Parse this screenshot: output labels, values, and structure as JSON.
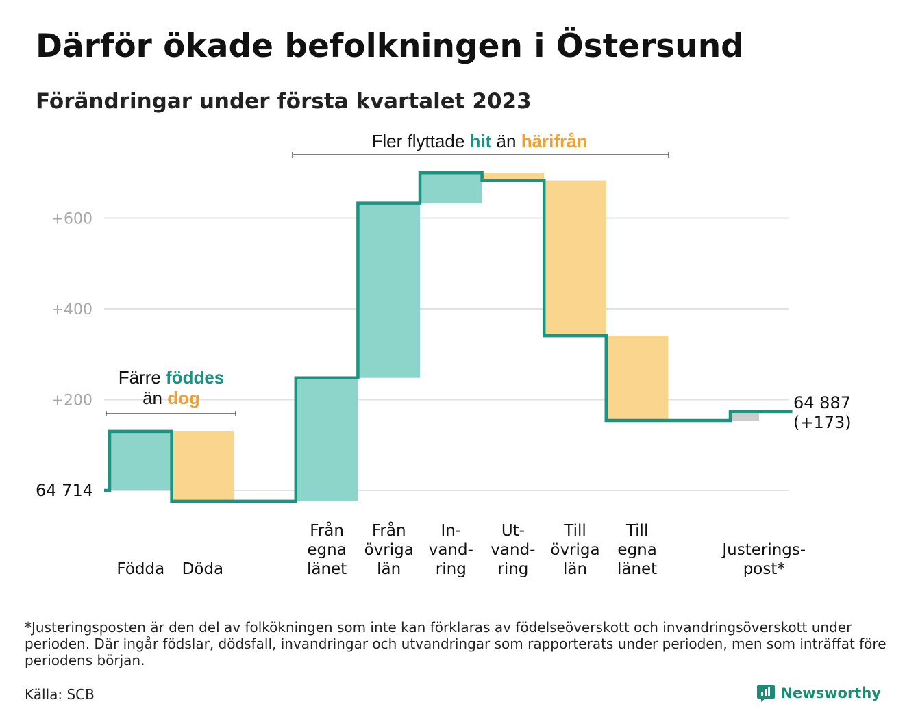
{
  "title": "Därför ökade befolkningen i Östersund",
  "subtitle": "Förändringar under första kvartalet 2023",
  "colors": {
    "teal_line": "#1a9480",
    "teal_fill": "#8dd5cb",
    "orange_fill": "#f9d58e",
    "orange_text": "#f0a030",
    "teal_text": "#1a9480",
    "gray_fill": "#cccccc",
    "grid": "#e2e2e2",
    "tick_text": "#a8a8a8"
  },
  "annotations": {
    "migration": {
      "prefix": "Fler flyttade ",
      "highlight1": "hit",
      "middle": " än ",
      "highlight2": "härifrån"
    },
    "births": {
      "line1_prefix": "Färre ",
      "line1_highlight": "föddes",
      "line2_prefix": "än ",
      "line2_highlight": "dog"
    }
  },
  "chart_data": {
    "type": "waterfall",
    "start_value": 64714,
    "start_label": "64 714",
    "end_value": 64887,
    "end_label_lines": [
      "64 887",
      "(+173)"
    ],
    "y_ticks": [
      {
        "value": 200,
        "label": "+200"
      },
      {
        "value": 400,
        "label": "+400"
      },
      {
        "value": 600,
        "label": "+600"
      }
    ],
    "ylim": [
      -40,
      760
    ],
    "grid": true,
    "steps": [
      {
        "label_lines": [
          "Födda"
        ],
        "delta": 130,
        "kind": "gain",
        "slot": 0
      },
      {
        "label_lines": [
          "Döda"
        ],
        "delta": -154,
        "kind": "loss",
        "slot": 1
      },
      {
        "label_lines": [
          "Från",
          "egna",
          "länet"
        ],
        "delta": 272,
        "kind": "gain",
        "slot": 3
      },
      {
        "label_lines": [
          "Från",
          "övriga",
          "län"
        ],
        "delta": 385,
        "kind": "gain",
        "slot": 4
      },
      {
        "label_lines": [
          "In-",
          "vand-",
          "ring"
        ],
        "delta": 67,
        "kind": "gain",
        "slot": 5
      },
      {
        "label_lines": [
          "Ut-",
          "vand-",
          "ring"
        ],
        "delta": -17,
        "kind": "loss",
        "slot": 6
      },
      {
        "label_lines": [
          "Till",
          "övriga",
          "län"
        ],
        "delta": -342,
        "kind": "loss",
        "slot": 7
      },
      {
        "label_lines": [
          "Till",
          "egna",
          "länet"
        ],
        "delta": -187,
        "kind": "loss",
        "slot": 8
      },
      {
        "label_lines": [
          "Justerings-",
          "post*"
        ],
        "delta": 20,
        "kind": "adjust",
        "slot": 10
      }
    ]
  },
  "footnote": "*Justeringsposten är den del av folkökningen som inte kan förklaras av födelseöverskott och invandringsöverskott under perioden. Där ingår födslar, dödsfall, invandringar och utvandringar som rapporterats under perioden, men som inträffat före periodens början.",
  "source": "Källa: SCB",
  "logo": {
    "name": "newsworthy-logo-icon",
    "text": "Newsworthy"
  }
}
